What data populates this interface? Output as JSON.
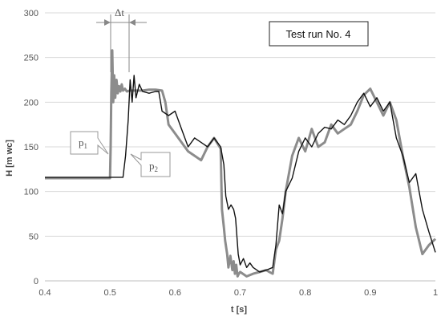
{
  "chart_data": {
    "type": "line",
    "xlabel": "t [s]",
    "ylabel": "H [m wc]",
    "xlim": [
      0.4,
      1.0
    ],
    "ylim": [
      0,
      300
    ],
    "xticks": [
      "0.4",
      "0.5",
      "0.6",
      "0.7",
      "0.8",
      "0.9",
      "1"
    ],
    "yticks": [
      "0",
      "50",
      "100",
      "150",
      "200",
      "250",
      "300"
    ],
    "grid": "horizontal",
    "legend": "none",
    "title_box": "Test run No. 4",
    "annotations": {
      "delta_t": "Δt",
      "p1": {
        "base": "p",
        "sub": "1"
      },
      "p2": {
        "base": "p",
        "sub": "2"
      }
    },
    "series": [
      {
        "color": "#8c8c8c",
        "x": [
          0.4,
          0.5,
          0.501,
          0.502,
          0.5035,
          0.505,
          0.5065,
          0.508,
          0.51,
          0.512,
          0.514,
          0.516,
          0.518,
          0.52,
          0.523,
          0.526,
          0.53,
          0.54,
          0.55,
          0.56,
          0.57,
          0.58,
          0.585,
          0.59,
          0.6,
          0.61,
          0.62,
          0.63,
          0.64,
          0.65,
          0.66,
          0.67,
          0.672,
          0.675,
          0.677,
          0.68,
          0.682,
          0.685,
          0.688,
          0.69,
          0.692,
          0.694,
          0.696,
          0.698,
          0.7,
          0.71,
          0.72,
          0.73,
          0.74,
          0.745,
          0.75,
          0.755,
          0.76,
          0.765,
          0.77,
          0.78,
          0.79,
          0.8,
          0.81,
          0.82,
          0.83,
          0.84,
          0.85,
          0.86,
          0.87,
          0.88,
          0.89,
          0.9,
          0.91,
          0.92,
          0.93,
          0.94,
          0.95,
          0.96,
          0.97,
          0.98,
          0.99,
          1.0
        ],
        "values": [
          115,
          115,
          150,
          210,
          258,
          200,
          230,
          205,
          225,
          210,
          218,
          212,
          220,
          213,
          215,
          212,
          213,
          213,
          213,
          214,
          214,
          213,
          200,
          175,
          165,
          155,
          145,
          140,
          135,
          150,
          160,
          148,
          80,
          60,
          45,
          30,
          15,
          28,
          12,
          22,
          8,
          18,
          5,
          8,
          10,
          5,
          8,
          10,
          12,
          10,
          8,
          35,
          45,
          70,
          100,
          140,
          160,
          145,
          170,
          150,
          155,
          175,
          165,
          170,
          175,
          190,
          208,
          215,
          200,
          185,
          200,
          180,
          140,
          105,
          60,
          30,
          40,
          47
        ]
      },
      {
        "color": "#111111",
        "x": [
          0.4,
          0.52,
          0.524,
          0.528,
          0.531,
          0.534,
          0.537,
          0.54,
          0.545,
          0.55,
          0.56,
          0.57,
          0.575,
          0.58,
          0.59,
          0.6,
          0.61,
          0.62,
          0.63,
          0.64,
          0.65,
          0.66,
          0.67,
          0.675,
          0.678,
          0.682,
          0.686,
          0.69,
          0.693,
          0.697,
          0.7,
          0.705,
          0.71,
          0.715,
          0.72,
          0.73,
          0.74,
          0.75,
          0.755,
          0.76,
          0.765,
          0.77,
          0.78,
          0.79,
          0.8,
          0.81,
          0.82,
          0.83,
          0.84,
          0.85,
          0.86,
          0.87,
          0.88,
          0.89,
          0.9,
          0.91,
          0.92,
          0.93,
          0.94,
          0.95,
          0.96,
          0.97,
          0.98,
          0.99,
          1.0
        ],
        "values": [
          116,
          116,
          140,
          180,
          225,
          200,
          230,
          205,
          220,
          212,
          210,
          212,
          212,
          190,
          185,
          190,
          170,
          150,
          160,
          155,
          150,
          160,
          150,
          130,
          95,
          80,
          85,
          80,
          70,
          30,
          18,
          25,
          15,
          20,
          15,
          10,
          12,
          15,
          40,
          85,
          75,
          100,
          115,
          145,
          160,
          150,
          165,
          172,
          170,
          180,
          175,
          185,
          200,
          210,
          195,
          205,
          190,
          200,
          160,
          140,
          110,
          120,
          80,
          55,
          32
        ]
      }
    ]
  }
}
